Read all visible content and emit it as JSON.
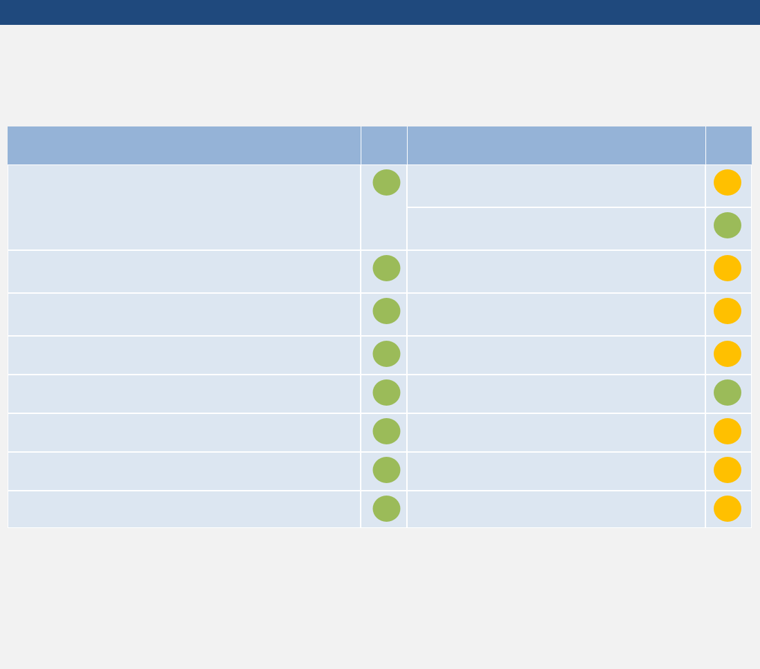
{
  "table": {
    "left_rows": [
      {
        "status_color": "#9bbb59"
      },
      {
        "status_color": "#9bbb59"
      },
      {
        "status_color": "#9bbb59"
      },
      {
        "status_color": "#9bbb59"
      },
      {
        "status_color": "#9bbb59"
      },
      {
        "status_color": "#9bbb59"
      },
      {
        "status_color": "#9bbb59"
      },
      {
        "status_color": "#9bbb59"
      }
    ],
    "right_rows": [
      {
        "status_color": "#ffc000"
      },
      {
        "status_color": "#9bbb59"
      },
      {
        "status_color": "#ffc000"
      },
      {
        "status_color": "#ffc000"
      },
      {
        "status_color": "#ffc000"
      },
      {
        "status_color": "#9bbb59"
      },
      {
        "status_color": "#ffc000"
      },
      {
        "status_color": "#ffc000"
      },
      {
        "status_color": "#ffc000"
      }
    ]
  }
}
